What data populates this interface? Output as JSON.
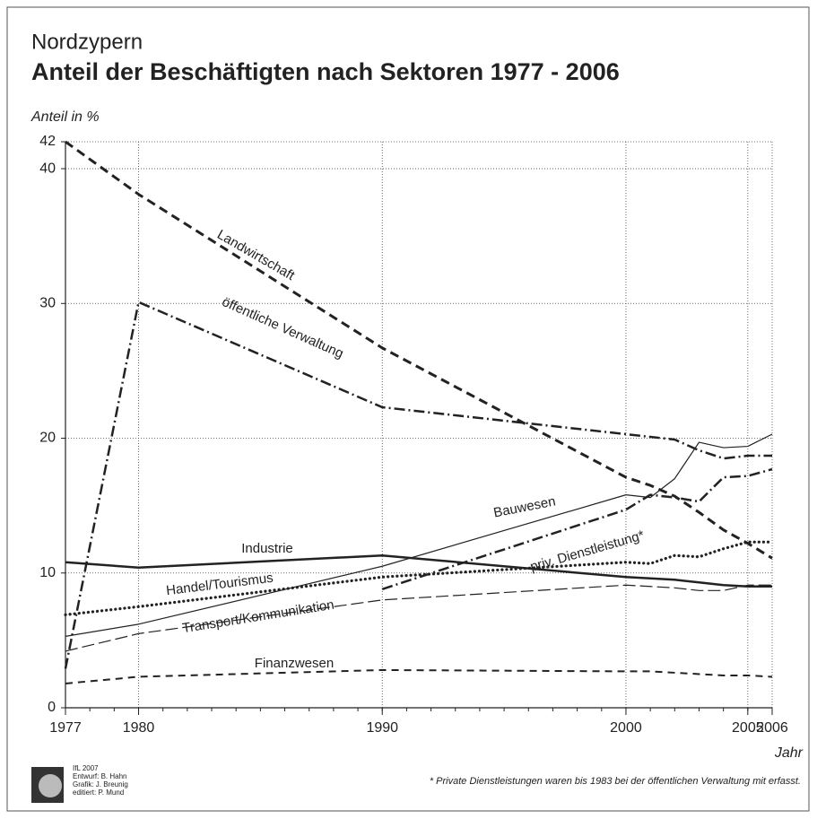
{
  "chart_data": {
    "type": "line",
    "supertitle": "Nordzypern",
    "title": "Anteil der Beschäftigten nach Sektoren 1977 - 2006",
    "y_label": "Anteil in %",
    "x_label": "Jahr",
    "footnote": "* Private Dienstleistungen waren bis 1983 bei der öffentlichen Verwaltung mit erfasst.",
    "credits": [
      "IfL 2007",
      "Entwurf: B. Hahn",
      "Grafik: J. Breunig",
      "editiert: P. Mund"
    ],
    "x": [
      1977,
      1980,
      1990,
      2000,
      2001,
      2002,
      2003,
      2004,
      2005,
      2006
    ],
    "xlim": [
      1977,
      2006
    ],
    "xticks": [
      1977,
      1980,
      1990,
      2000,
      2005,
      2006
    ],
    "ylim": [
      0,
      42
    ],
    "yticks": [
      0,
      10,
      20,
      30,
      40,
      42
    ],
    "grid": true,
    "series": [
      {
        "name": "Landwirtschaft",
        "color": "#222222",
        "style": "thick-dashed",
        "values": [
          42,
          38.1,
          26.7,
          17.1,
          16.5,
          15.7,
          14.5,
          13.2,
          12.2,
          11.1
        ]
      },
      {
        "name": "öffentliche Verwaltung",
        "color": "#222222",
        "style": "dash-dot",
        "values": [
          2.9,
          30.1,
          22.3,
          20.3,
          20.1,
          19.9,
          19.1,
          18.5,
          18.7,
          18.7
        ]
      },
      {
        "name": "Industrie",
        "color": "#222222",
        "style": "thick-solid",
        "values": [
          10.8,
          10.4,
          11.3,
          9.7,
          9.6,
          9.5,
          9.3,
          9.1,
          9.0,
          9.0
        ]
      },
      {
        "name": "Bauwesen",
        "color": "#222222",
        "style": "thin-solid",
        "values": [
          5.3,
          6.2,
          10.5,
          15.8,
          15.6,
          17.0,
          19.7,
          19.3,
          19.4,
          20.3
        ]
      },
      {
        "name": "priv. Dienstleistung*",
        "color": "#222222",
        "style": "dash-dot",
        "values": [
          null,
          null,
          8.8,
          14.7,
          15.8,
          15.6,
          15.3,
          17.1,
          17.2,
          17.7
        ]
      },
      {
        "name": "Handel/Tourismus",
        "color": "#222222",
        "style": "dotted",
        "values": [
          6.9,
          7.5,
          9.7,
          10.8,
          10.7,
          11.3,
          11.2,
          11.8,
          12.3,
          12.3
        ]
      },
      {
        "name": "Transport/Kommunikation",
        "color": "#222222",
        "style": "thin-dashed",
        "values": [
          4.2,
          5.5,
          8.0,
          9.1,
          9.0,
          8.9,
          8.7,
          8.7,
          9.1,
          9.1
        ]
      },
      {
        "name": "Finanzwesen",
        "color": "#222222",
        "style": "dashed",
        "values": [
          1.8,
          2.3,
          2.8,
          2.7,
          2.7,
          2.6,
          2.5,
          2.4,
          2.4,
          2.3
        ]
      }
    ]
  }
}
